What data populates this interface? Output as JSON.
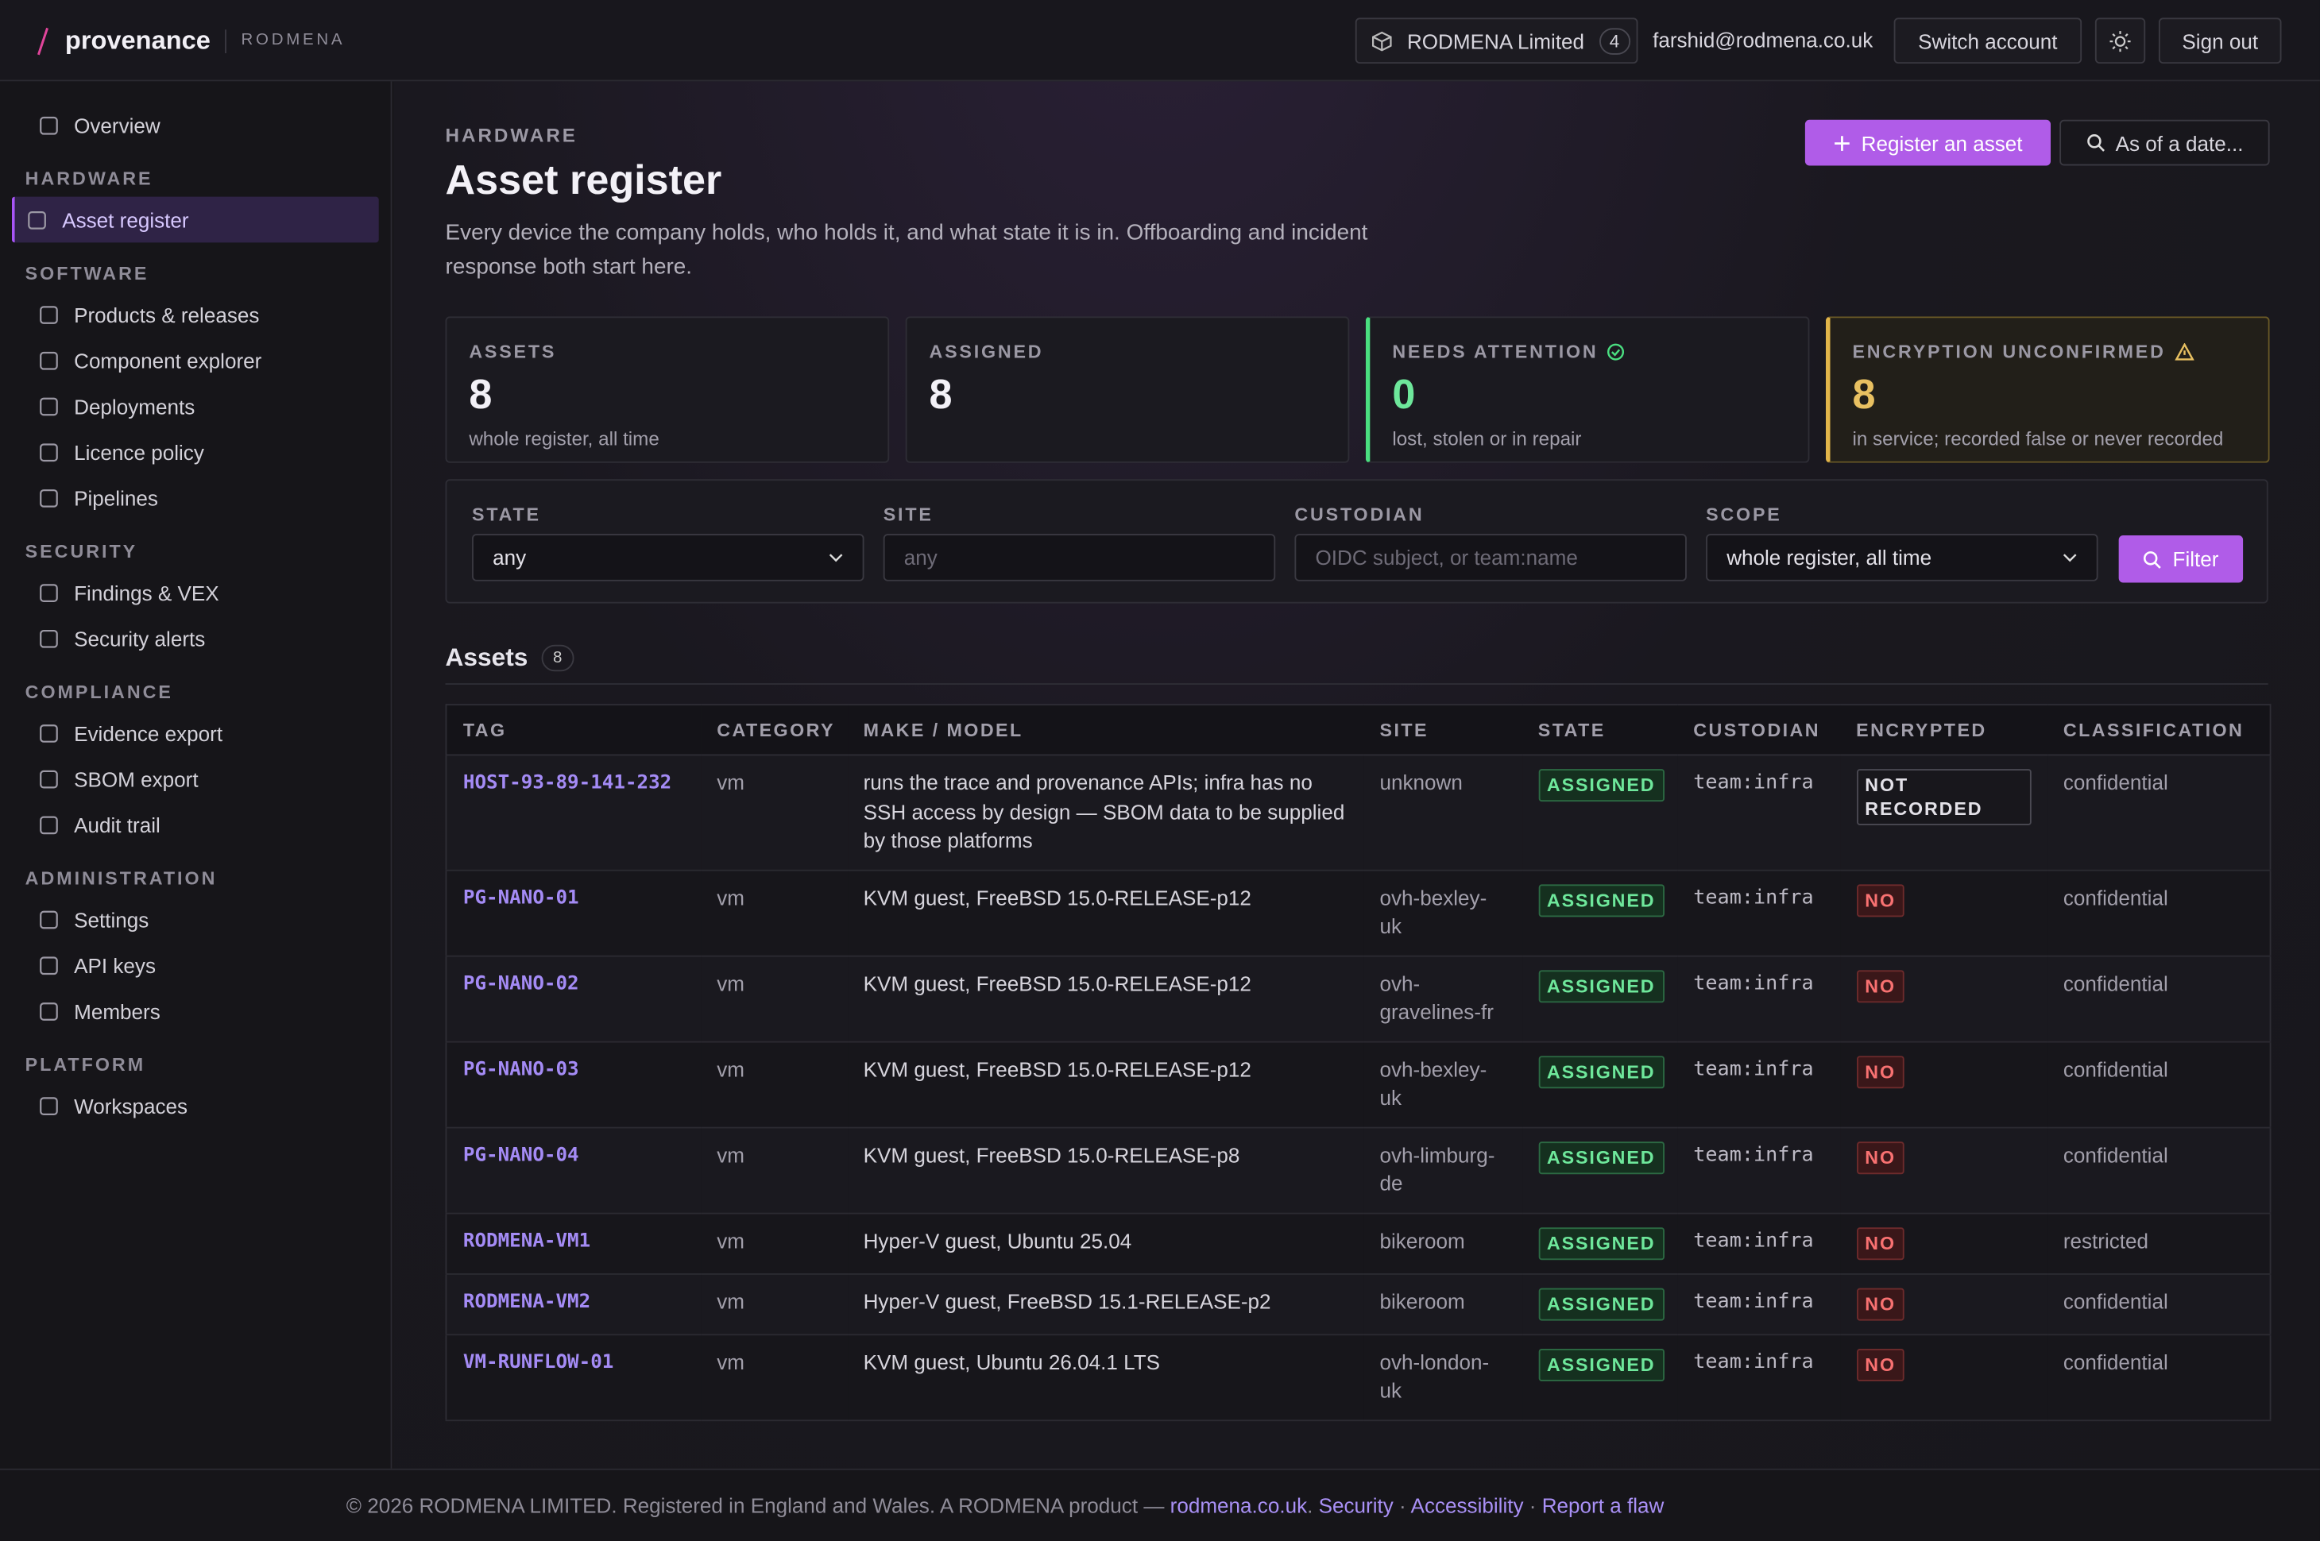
{
  "header": {
    "brand": "provenance",
    "org": "RODMENA",
    "account": "RODMENA Limited",
    "account_count": 4,
    "email": "farshid@rodmena.co.uk",
    "switch": "Switch account",
    "signout": "Sign out"
  },
  "sidebar": {
    "overview": "Overview",
    "sections": [
      {
        "title": "HARDWARE",
        "items": [
          "Asset register"
        ]
      },
      {
        "title": "SOFTWARE",
        "items": [
          "Products & releases",
          "Component explorer",
          "Deployments",
          "Licence policy",
          "Pipelines"
        ]
      },
      {
        "title": "SECURITY",
        "items": [
          "Findings & VEX",
          "Security alerts"
        ]
      },
      {
        "title": "COMPLIANCE",
        "items": [
          "Evidence export",
          "SBOM export",
          "Audit trail"
        ]
      },
      {
        "title": "ADMINISTRATION",
        "items": [
          "Settings",
          "API keys",
          "Members"
        ]
      },
      {
        "title": "PLATFORM",
        "items": [
          "Workspaces"
        ]
      }
    ]
  },
  "page": {
    "eyebrow": "HARDWARE",
    "title": "Asset register",
    "description": "Every device the company holds, who holds it, and what state it is in. Offboarding and incident response both start here.",
    "actions": [
      "Register an asset",
      "As of a date..."
    ]
  },
  "stats": [
    {
      "label": "ASSETS",
      "value": 8,
      "note": "whole register, all time"
    },
    {
      "label": "ASSIGNED",
      "value": 8
    },
    {
      "label": "NEEDS ATTENTION",
      "value": 0,
      "note": "lost, stolen or in repair"
    },
    {
      "label": "ENCRYPTION UNCONFIRMED",
      "value": 8,
      "note": "in service; recorded false or never recorded"
    }
  ],
  "filters": {
    "fields": [
      {
        "label": "STATE",
        "value": "any"
      },
      {
        "label": "SITE",
        "placeholder": "any"
      },
      {
        "label": "CUSTODIAN",
        "placeholder": "OIDC subject, or team:name"
      },
      {
        "label": "SCOPE",
        "value": "whole register, all time"
      }
    ],
    "button": "Filter"
  },
  "assets": {
    "title": "Assets",
    "count": 8
  },
  "table": {
    "columns": [
      "TAG",
      "CATEGORY",
      "MAKE / MODEL",
      "SITE",
      "STATE",
      "CUSTODIAN",
      "ENCRYPTED",
      "CLASSIFICATION"
    ],
    "rows": [
      [
        "HOST-93-89-141-232",
        "vm",
        "runs the trace and provenance APIs; infra has no SSH access by design — SBOM data to be supplied by those platforms",
        "unknown",
        "ASSIGNED",
        "team:infra",
        "NOT RECORDED",
        "confidential"
      ],
      [
        "PG-NANO-01",
        "vm",
        "KVM guest, FreeBSD 15.0-RELEASE-p12",
        "ovh-bexley-uk",
        "ASSIGNED",
        "team:infra",
        "NO",
        "confidential"
      ],
      [
        "PG-NANO-02",
        "vm",
        "KVM guest, FreeBSD 15.0-RELEASE-p12",
        "ovh-gravelines-fr",
        "ASSIGNED",
        "team:infra",
        "NO",
        "confidential"
      ],
      [
        "PG-NANO-03",
        "vm",
        "KVM guest, FreeBSD 15.0-RELEASE-p12",
        "ovh-bexley-uk",
        "ASSIGNED",
        "team:infra",
        "NO",
        "confidential"
      ],
      [
        "PG-NANO-04",
        "vm",
        "KVM guest, FreeBSD 15.0-RELEASE-p8",
        "ovh-limburg-de",
        "ASSIGNED",
        "team:infra",
        "NO",
        "confidential"
      ],
      [
        "RODMENA-VM1",
        "vm",
        "Hyper-V guest, Ubuntu 25.04",
        "bikeroom",
        "ASSIGNED",
        "team:infra",
        "NO",
        "restricted"
      ],
      [
        "RODMENA-VM2",
        "vm",
        "Hyper-V guest, FreeBSD 15.1-RELEASE-p2",
        "bikeroom",
        "ASSIGNED",
        "team:infra",
        "NO",
        "confidential"
      ],
      [
        "VM-RUNFLOW-01",
        "vm",
        "KVM guest, Ubuntu 26.04.1 LTS",
        "ovh-london-uk",
        "ASSIGNED",
        "team:infra",
        "NO",
        "confidential"
      ]
    ],
    "encrypted_tones": [
      "neutral",
      "danger",
      "danger",
      "danger",
      "danger",
      "danger",
      "danger",
      "danger"
    ]
  },
  "footer": {
    "text": "© 2026 RODMENA LIMITED. Registered in England and Wales. A RODMENA product —",
    "links": [
      "rodmena.co.uk",
      "Security",
      "Accessibility",
      "Report a flaw"
    ],
    "separators": [
      ".",
      "·",
      "·"
    ]
  }
}
